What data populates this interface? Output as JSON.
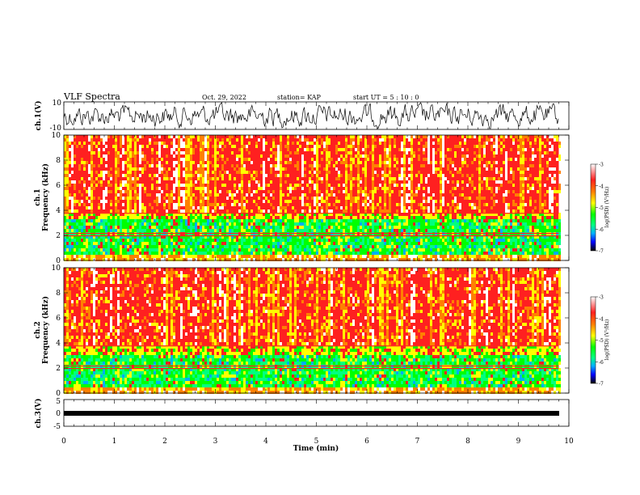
{
  "header": {
    "title": "VLF Spectra",
    "date": "Oct. 29, 2022",
    "station": "station= KAP",
    "start": "start  UT =   5  : 10 : 0"
  },
  "colors": {
    "spectrogram_palette": [
      "#000000",
      "#0000ff",
      "#00b0ff",
      "#00ff80",
      "#00ff00",
      "#ffff00",
      "#ff8000",
      "#ff2020",
      "#ffffff"
    ]
  },
  "chart_data": [
    {
      "type": "line",
      "name": "ch1-waveform",
      "ylabel": "ch.1(V)",
      "ylim": [
        -10,
        10
      ],
      "yticks": [
        "10",
        "-10"
      ],
      "xlim": [
        0,
        10
      ]
    },
    {
      "type": "heatmap",
      "name": "ch1-spectrogram",
      "ylabel": "ch.1\nFrequency (kHz)",
      "ylabel_top": "ch.1",
      "ylabel_bottom": "Frequency (kHz)",
      "ylim": [
        0,
        10
      ],
      "yticks": [
        "0",
        "2",
        "4",
        "6",
        "8",
        "10"
      ],
      "xlim": [
        0,
        10
      ],
      "data_end_min": 9.8,
      "colorbar": {
        "label": "log(PSD) (V²/Hz)",
        "range": [
          -7,
          -3
        ],
        "ticks": [
          "-3",
          "-4",
          "-5",
          "-6",
          "-7"
        ]
      }
    },
    {
      "type": "heatmap",
      "name": "ch2-spectrogram",
      "ylabel_top": "ch.2",
      "ylabel_bottom": "Frequency (kHz)",
      "ylim": [
        0,
        10
      ],
      "yticks": [
        "0",
        "2",
        "4",
        "6",
        "8",
        "10"
      ],
      "xlim": [
        0,
        10
      ],
      "data_end_min": 9.8,
      "colorbar": {
        "label": "log(PSD) (V²/Hz)",
        "range": [
          -7,
          -3
        ],
        "ticks": [
          "-3",
          "-4",
          "-5",
          "-6",
          "-7"
        ]
      }
    },
    {
      "type": "line",
      "name": "ch3-waveform",
      "ylabel": "ch.3(V)",
      "ylim": [
        -5,
        5
      ],
      "yticks": [
        "5",
        "0",
        "-5"
      ],
      "xlim": [
        0,
        10
      ]
    }
  ],
  "xaxis": {
    "label": "Time (min)",
    "ticks": [
      "0",
      "1",
      "2",
      "3",
      "4",
      "5",
      "6",
      "7",
      "8",
      "9",
      "10"
    ]
  }
}
